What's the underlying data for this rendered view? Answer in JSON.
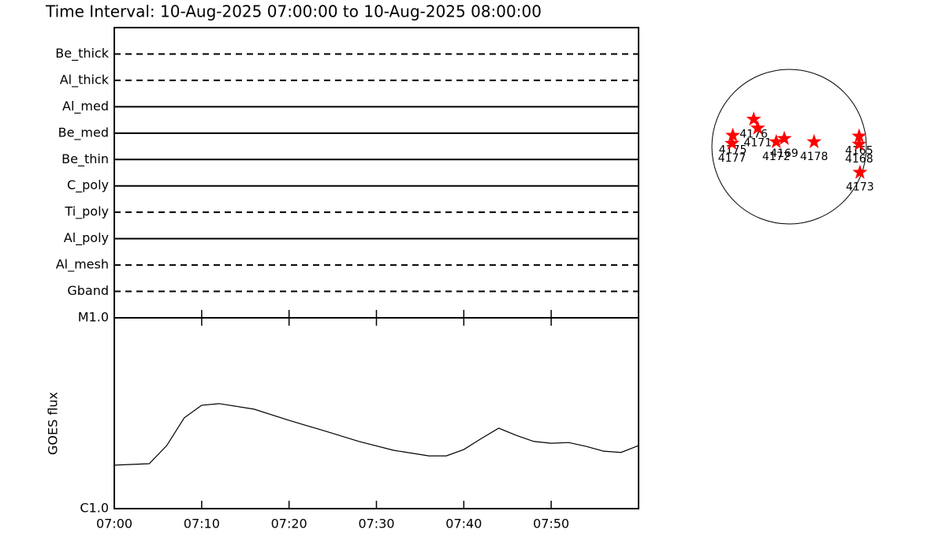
{
  "chart_data": [
    {
      "type": "filters",
      "title": "Time Interval: 10-Aug-2025 07:00:00 to 10-Aug-2025 08:00:00",
      "categories": [
        "Be_thick",
        "Al_thick",
        "Al_med",
        "Be_med",
        "Be_thin",
        "C_poly",
        "Ti_poly",
        "Al_poly",
        "Al_mesh",
        "Gband"
      ],
      "line_styles": [
        "dashed",
        "dashed",
        "solid",
        "solid",
        "solid",
        "solid",
        "dashed",
        "solid",
        "dashed",
        "dashed"
      ],
      "color": "#000000"
    },
    {
      "type": "line",
      "ylabel": "GOES flux",
      "log_y": true,
      "x": [
        "07:00",
        "07:04",
        "07:06",
        "07:08",
        "07:10",
        "07:12",
        "07:16",
        "07:20",
        "07:24",
        "07:28",
        "07:32",
        "07:36",
        "07:38",
        "07:40",
        "07:42",
        "07:44",
        "07:46",
        "07:48",
        "07:50",
        "07:52",
        "07:54",
        "07:56",
        "07:58",
        "08:00"
      ],
      "values": [
        1.69e-06,
        1.72e-06,
        2.14e-06,
        2.99e-06,
        3.48e-06,
        3.55e-06,
        3.32e-06,
        2.9e-06,
        2.56e-06,
        2.25e-06,
        2.02e-06,
        1.89e-06,
        1.89e-06,
        2.04e-06,
        2.33e-06,
        2.64e-06,
        2.42e-06,
        2.25e-06,
        2.2e-06,
        2.22e-06,
        2.12e-06,
        2e-06,
        1.97e-06,
        2.14e-06
      ],
      "color": "#000000",
      "xlim": [
        "07:00",
        "08:00"
      ],
      "xticks": [
        "07:00",
        "07:10",
        "07:20",
        "07:30",
        "07:40",
        "07:50"
      ],
      "ylim": [
        1e-06,
        1e-05
      ],
      "yticks": [
        {
          "value": 1e-06,
          "label": "C1.0"
        },
        {
          "value": 1e-05,
          "label": "M1.0"
        }
      ]
    },
    {
      "type": "disk",
      "xlim": [
        -960,
        960
      ],
      "ylim": [
        -960,
        960
      ],
      "color": "#ff0000",
      "points": [
        {
          "label": "4175",
          "x": -700,
          "y": 140
        },
        {
          "label": "4177",
          "x": -710,
          "y": 40
        },
        {
          "label": "4176",
          "x": -440,
          "y": 340
        },
        {
          "label": "4171",
          "x": -390,
          "y": 230
        },
        {
          "label": "4172",
          "x": -160,
          "y": 60
        },
        {
          "label": "4169",
          "x": -60,
          "y": 100
        },
        {
          "label": "4178",
          "x": 310,
          "y": 60
        },
        {
          "label": "4165",
          "x": 870,
          "y": 130
        },
        {
          "label": "4168",
          "x": 870,
          "y": 30
        },
        {
          "label": "4173",
          "x": 880,
          "y": -320
        }
      ]
    }
  ]
}
